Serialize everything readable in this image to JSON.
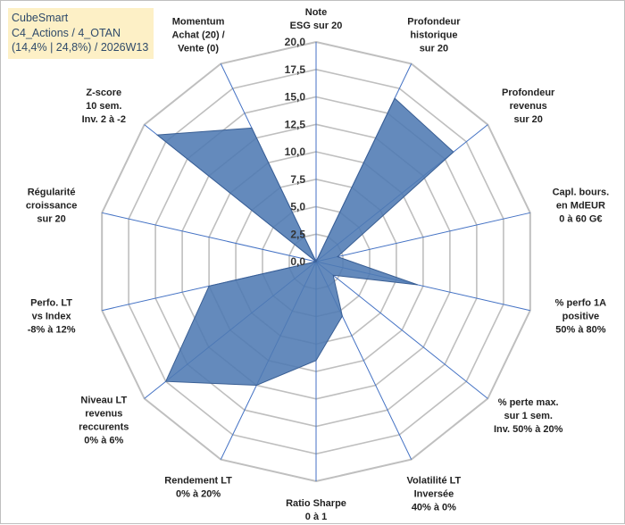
{
  "title_box": {
    "line1": "CubeSmart",
    "line2": "C4_Actions / 4_OTAN",
    "line3": "(14,4% | 24,8%) / 2026W13"
  },
  "colors": {
    "fill": "#4f7ab3",
    "stroke": "#3a5f94",
    "axis": "#4472c4",
    "grid": "#bfbfbf",
    "title_bg": "#fdf0c6"
  },
  "chart_data": {
    "type": "radar",
    "title": "",
    "rmin": 0,
    "rmax": 20,
    "tick_step": 2.5,
    "tick_labels": [
      "0,0",
      "2,5",
      "5,0",
      "7,5",
      "10,0",
      "12,5",
      "15,0",
      "17,5",
      "20,0"
    ],
    "axes": [
      {
        "label": [
          "Note",
          "ESG sur 20"
        ],
        "value": 0
      },
      {
        "label": [
          "Profondeur",
          "historique",
          "sur 20"
        ],
        "value": 16.5
      },
      {
        "label": [
          "Profondeur",
          "revenus",
          "sur 20"
        ],
        "value": 16.0
      },
      {
        "label": [
          "Capl. bours.",
          "en MdEUR",
          "0 à 60 G€"
        ],
        "value": 2.0
      },
      {
        "label": [
          "% perfo 1A",
          "positive",
          "50% à 80%"
        ],
        "value": 9.5
      },
      {
        "label": [
          "% perte max.",
          "sur 1 sem.",
          "Inv. 50% à 20%"
        ],
        "value": 2.0
      },
      {
        "label": [
          "Volatilité LT",
          "Inversée",
          "40% à 0%"
        ],
        "value": 5.5
      },
      {
        "label": [
          "Ratio Sharpe",
          "0 à 1"
        ],
        "value": 9.0
      },
      {
        "label": [
          "Rendement LT",
          "0% à 20%"
        ],
        "value": 12.5
      },
      {
        "label": [
          "Niveau LT",
          "revenus",
          "reccurents",
          "0% à 6%"
        ],
        "value": 17.5
      },
      {
        "label": [
          "Perfo. LT",
          "vs Index",
          "-8% à 12%"
        ],
        "value": 10.0
      },
      {
        "label": [
          "Régularité",
          "croissance",
          "sur 20"
        ],
        "value": 0
      },
      {
        "label": [
          "Z-score",
          "10 sem.",
          "Inv. 2 à -2"
        ],
        "value": 18.5
      },
      {
        "label": [
          "Momentum",
          "Achat (20) /",
          "Vente (0)"
        ],
        "value": 13.5
      }
    ]
  }
}
